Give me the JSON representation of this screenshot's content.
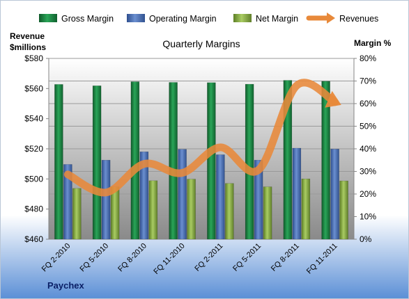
{
  "chart_data": {
    "type": "bar",
    "title": "Quarterly Margins",
    "company": "Paychex",
    "categories": [
      "FQ 2-2010",
      "FQ 5-2010",
      "FQ 8-2010",
      "FQ 11-2010",
      "FQ 2-2011",
      "FQ 5-2011",
      "FQ 8-2011",
      "FQ 11-2011"
    ],
    "series": [
      {
        "name": "Gross Margin",
        "values": [
          68.5,
          67.9,
          69.7,
          69.4,
          69.3,
          68.6,
          70.3,
          69.9
        ],
        "color": "#1f8a45",
        "axis": "right"
      },
      {
        "name": "Operating Margin",
        "values": [
          33.1,
          35.0,
          38.7,
          39.8,
          37.4,
          35.0,
          40.3,
          39.9
        ],
        "color": "#4a6fb5",
        "axis": "right"
      },
      {
        "name": "Net Margin",
        "values": [
          22.5,
          23.2,
          25.9,
          26.6,
          24.7,
          23.2,
          26.7,
          25.8
        ],
        "color": "#8db24a",
        "axis": "right"
      },
      {
        "name": "Revenues",
        "values": [
          503,
          491,
          510,
          504,
          521,
          506,
          562,
          551
        ],
        "color": "#e8893a",
        "axis": "left",
        "type": "line"
      }
    ],
    "ylabel_left": [
      "Revenue",
      "$millions"
    ],
    "ylabel_right": "Margin %",
    "ylim_left": [
      460,
      580
    ],
    "yticks_left": [
      "$460",
      "$480",
      "$500",
      "$520",
      "$540",
      "$560",
      "$580"
    ],
    "ylim_right": [
      0,
      80
    ],
    "yticks_right": [
      "0%",
      "10%",
      "20%",
      "30%",
      "40%",
      "50%",
      "60%",
      "70%",
      "80%"
    ],
    "legend_position": "top",
    "grid": true
  }
}
